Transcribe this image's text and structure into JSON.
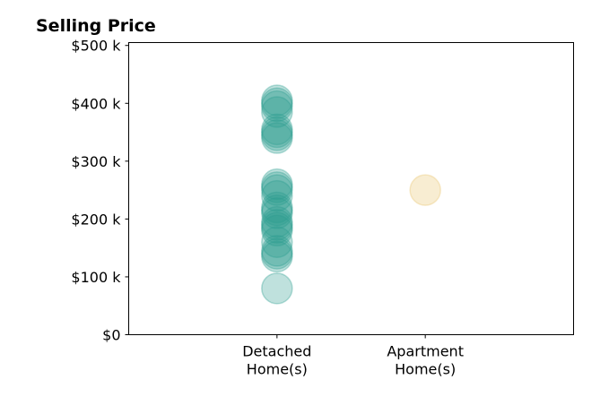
{
  "chart_data": {
    "type": "scatter",
    "title": "Selling Price",
    "xlabel": "",
    "ylabel": "",
    "categories": [
      "Detached\nHome(s)",
      "Apartment\nHome(s)"
    ],
    "x_range": [
      0,
      3
    ],
    "ylim": [
      0,
      505000
    ],
    "y_ticks": [
      0,
      100000,
      200000,
      300000,
      400000,
      500000
    ],
    "y_tick_labels": [
      "$0",
      "$100 k",
      "$200 k",
      "$300 k",
      "$400 k",
      "$500 k"
    ],
    "grid": false,
    "legend": "none",
    "series": [
      {
        "category_index": 0,
        "color": "#2a9d8f",
        "values": [
          80000,
          135000,
          140000,
          145000,
          160000,
          180000,
          185000,
          190000,
          195000,
          210000,
          215000,
          220000,
          240000,
          250000,
          255000,
          260000,
          340000,
          345000,
          350000,
          355000,
          385000,
          395000,
          400000,
          405000
        ]
      },
      {
        "category_index": 1,
        "color": "#e9c46a",
        "values": [
          250000
        ]
      }
    ]
  }
}
